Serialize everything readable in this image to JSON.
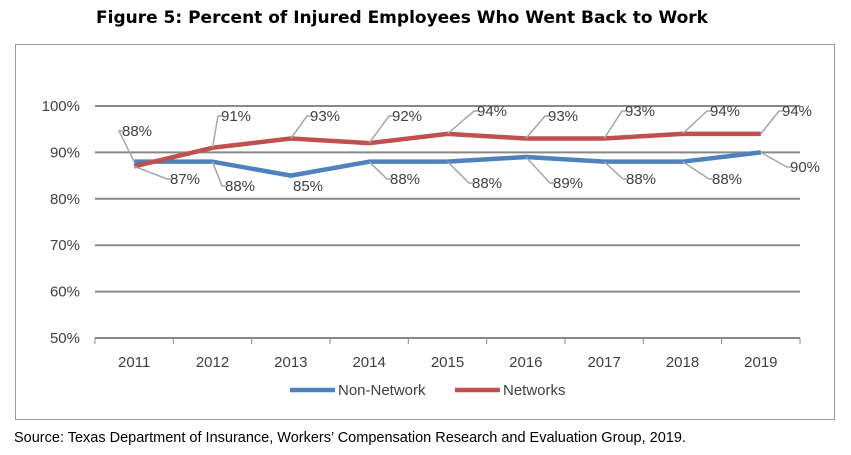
{
  "chart_data": {
    "type": "line",
    "title": "Figure 5: Percent of Injured Employees Who Went Back to Work",
    "categories": [
      "2011",
      "2012",
      "2013",
      "2014",
      "2015",
      "2016",
      "2017",
      "2018",
      "2019"
    ],
    "series": [
      {
        "name": "Non-Network",
        "color": "#4F81BD",
        "values": [
          88,
          88,
          85,
          88,
          88,
          89,
          88,
          88,
          90
        ]
      },
      {
        "name": "Networks",
        "color": "#C0504D",
        "values": [
          87,
          91,
          93,
          92,
          94,
          93,
          93,
          94,
          94
        ]
      }
    ],
    "ylim": [
      50,
      100
    ],
    "yticks": [
      "50%",
      "60%",
      "70%",
      "80%",
      "90%",
      "100%"
    ],
    "grid": true,
    "legend": "bottom",
    "source": "Source: Texas Department of Insurance, Workers’ Compensation Research and Evaluation Group, 2019."
  }
}
